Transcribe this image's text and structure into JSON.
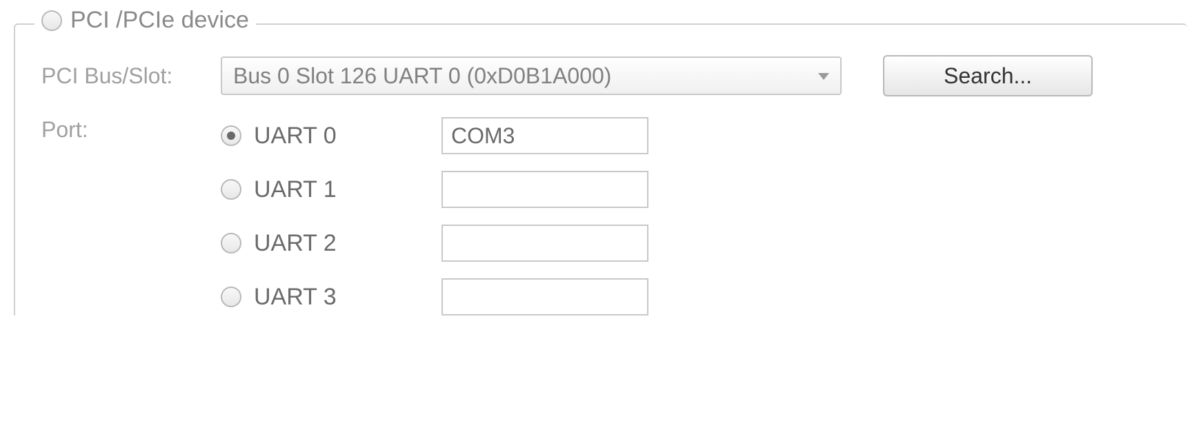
{
  "groupbox": {
    "title": "PCI /PCIe device",
    "selected": false
  },
  "pci": {
    "label": "PCI Bus/Slot:",
    "selected": "Bus 0 Slot 126 UART 0 (0xD0B1A000)",
    "search_label": "Search..."
  },
  "port": {
    "label": "Port:",
    "options": [
      {
        "label": "UART 0",
        "value": "COM3",
        "selected": true
      },
      {
        "label": "UART 1",
        "value": "",
        "selected": false
      },
      {
        "label": "UART 2",
        "value": "",
        "selected": false
      },
      {
        "label": "UART 3",
        "value": "",
        "selected": false
      }
    ]
  },
  "colors": {
    "border": "#d0d0d0",
    "text_muted": "#a0a0a0",
    "text": "#6a6a6a",
    "button_text": "#333333"
  }
}
